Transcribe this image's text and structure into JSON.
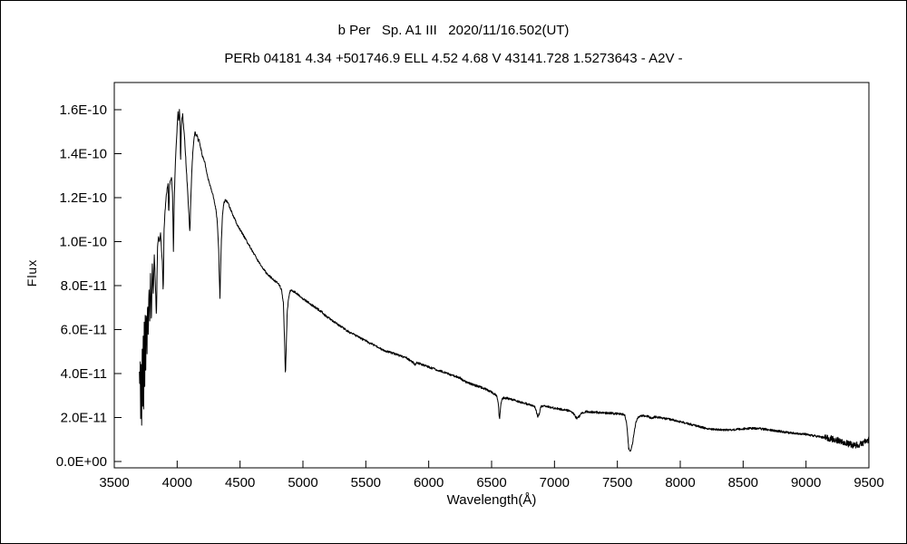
{
  "chart_data": {
    "type": "line",
    "title": "b Per   Sp. A1 III   2020/11/16.502(UT)",
    "subtitle": "PERb 04181 4.34 +501746.9 ELL 4.52 4.68 V 43141.728 1.5273643 - A2V -",
    "xlabel": "Wavelength(Å)",
    "ylabel": "Flux",
    "xlim": [
      3500,
      9500
    ],
    "ylim": [
      0,
      16
    ],
    "flux_scale": "1e-11",
    "grid": false,
    "legend": "none",
    "line_color": "#000000",
    "background_color": "#ffffff",
    "frame_color": "#000000",
    "x_ticks": {
      "values": [
        3500,
        4000,
        4500,
        5000,
        5500,
        6000,
        6500,
        7000,
        7500,
        8000,
        8500,
        9000,
        9500
      ],
      "labels": [
        "3500",
        "4000",
        "4500",
        "5000",
        "5500",
        "6000",
        "6500",
        "7000",
        "7500",
        "8000",
        "8500",
        "9000",
        "9500"
      ]
    },
    "y_ticks": {
      "values": [
        0,
        2,
        4,
        6,
        8,
        10,
        12,
        14,
        16
      ],
      "labels": [
        "0.0E+00",
        "2.0E-11",
        "4.0E-11",
        "6.0E-11",
        "8.0E-11",
        "1.0E-10",
        "1.2E-10",
        "1.4E-10",
        "1.6E-10"
      ]
    },
    "noise": {
      "seed": 123456789,
      "base": 0.05,
      "regions": [
        {
          "from": 3700,
          "to": 3780,
          "amp": 0.2
        },
        {
          "from": 9150,
          "to": 9500,
          "amp": 0.15
        }
      ]
    },
    "points": [
      [
        3700,
        4.2
      ],
      [
        3703,
        3.0
      ],
      [
        3706,
        4.6
      ],
      [
        3710,
        2.0
      ],
      [
        3714,
        4.4
      ],
      [
        3718,
        1.8
      ],
      [
        3722,
        5.2
      ],
      [
        3726,
        2.6
      ],
      [
        3730,
        5.8
      ],
      [
        3734,
        2.2
      ],
      [
        3738,
        6.2
      ],
      [
        3742,
        3.4
      ],
      [
        3746,
        6.6
      ],
      [
        3750,
        4.2
      ],
      [
        3755,
        7.0
      ],
      [
        3760,
        5.0
      ],
      [
        3765,
        7.4
      ],
      [
        3770,
        5.6
      ],
      [
        3776,
        8.0
      ],
      [
        3782,
        6.4
      ],
      [
        3788,
        8.6
      ],
      [
        3795,
        6.2
      ],
      [
        3802,
        9.0
      ],
      [
        3810,
        7.6
      ],
      [
        3818,
        9.4
      ],
      [
        3826,
        8.2
      ],
      [
        3835,
        6.6
      ],
      [
        3844,
        9.8
      ],
      [
        3852,
        10.2
      ],
      [
        3860,
        10.0
      ],
      [
        3868,
        10.4
      ],
      [
        3876,
        9.6
      ],
      [
        3883,
        9.0
      ],
      [
        3889,
        7.6
      ],
      [
        3896,
        10.6
      ],
      [
        3904,
        11.4
      ],
      [
        3912,
        12.0
      ],
      [
        3920,
        12.4
      ],
      [
        3928,
        12.6
      ],
      [
        3933,
        11.2
      ],
      [
        3940,
        12.6
      ],
      [
        3948,
        12.8
      ],
      [
        3956,
        12.9
      ],
      [
        3964,
        12.0
      ],
      [
        3970,
        9.6
      ],
      [
        3978,
        12.2
      ],
      [
        3986,
        13.6
      ],
      [
        3994,
        14.6
      ],
      [
        4000,
        15.2
      ],
      [
        4006,
        15.9
      ],
      [
        4012,
        15.5
      ],
      [
        4018,
        16.0
      ],
      [
        4024,
        15.2
      ],
      [
        4027,
        13.4
      ],
      [
        4032,
        15.0
      ],
      [
        4038,
        15.6
      ],
      [
        4044,
        15.8
      ],
      [
        4050,
        15.3
      ],
      [
        4056,
        14.9
      ],
      [
        4062,
        14.4
      ],
      [
        4070,
        13.6
      ],
      [
        4078,
        12.8
      ],
      [
        4086,
        12.0
      ],
      [
        4094,
        11.2
      ],
      [
        4101,
        10.4
      ],
      [
        4110,
        12.2
      ],
      [
        4118,
        13.4
      ],
      [
        4126,
        14.2
      ],
      [
        4134,
        14.7
      ],
      [
        4142,
        15.0
      ],
      [
        4150,
        14.8
      ],
      [
        4158,
        14.9
      ],
      [
        4166,
        14.6
      ],
      [
        4174,
        14.7
      ],
      [
        4182,
        14.4
      ],
      [
        4190,
        14.2
      ],
      [
        4200,
        13.9
      ],
      [
        4210,
        13.8
      ],
      [
        4220,
        13.6
      ],
      [
        4230,
        13.3
      ],
      [
        4240,
        13.0
      ],
      [
        4250,
        12.8
      ],
      [
        4260,
        12.6
      ],
      [
        4270,
        12.4
      ],
      [
        4280,
        12.2
      ],
      [
        4290,
        12.0
      ],
      [
        4300,
        11.7
      ],
      [
        4310,
        11.4
      ],
      [
        4320,
        10.8
      ],
      [
        4330,
        9.6
      ],
      [
        4340,
        7.4
      ],
      [
        4350,
        9.8
      ],
      [
        4360,
        11.2
      ],
      [
        4370,
        11.7
      ],
      [
        4380,
        11.9
      ],
      [
        4400,
        11.8
      ],
      [
        4415,
        11.6
      ],
      [
        4430,
        11.4
      ],
      [
        4445,
        11.2
      ],
      [
        4460,
        11.0
      ],
      [
        4475,
        10.8
      ],
      [
        4490,
        10.65
      ],
      [
        4505,
        10.5
      ],
      [
        4520,
        10.35
      ],
      [
        4535,
        10.2
      ],
      [
        4550,
        10.05
      ],
      [
        4565,
        9.9
      ],
      [
        4580,
        9.75
      ],
      [
        4600,
        9.55
      ],
      [
        4620,
        9.35
      ],
      [
        4640,
        9.15
      ],
      [
        4660,
        8.95
      ],
      [
        4680,
        8.8
      ],
      [
        4700,
        8.65
      ],
      [
        4720,
        8.5
      ],
      [
        4740,
        8.4
      ],
      [
        4760,
        8.3
      ],
      [
        4780,
        8.2
      ],
      [
        4800,
        8.1
      ],
      [
        4815,
        8.0
      ],
      [
        4830,
        7.8
      ],
      [
        4845,
        7.2
      ],
      [
        4855,
        5.2
      ],
      [
        4861,
        3.9
      ],
      [
        4868,
        5.4
      ],
      [
        4875,
        6.8
      ],
      [
        4885,
        7.4
      ],
      [
        4895,
        7.7
      ],
      [
        4905,
        7.8
      ],
      [
        4920,
        7.75
      ],
      [
        4940,
        7.7
      ],
      [
        4960,
        7.6
      ],
      [
        4980,
        7.5
      ],
      [
        5000,
        7.4
      ],
      [
        5025,
        7.3
      ],
      [
        5050,
        7.2
      ],
      [
        5075,
        7.1
      ],
      [
        5100,
        7.0
      ],
      [
        5125,
        6.9
      ],
      [
        5150,
        6.8
      ],
      [
        5175,
        6.65
      ],
      [
        5200,
        6.55
      ],
      [
        5225,
        6.45
      ],
      [
        5250,
        6.35
      ],
      [
        5275,
        6.25
      ],
      [
        5300,
        6.15
      ],
      [
        5325,
        6.05
      ],
      [
        5350,
        5.95
      ],
      [
        5375,
        5.85
      ],
      [
        5400,
        5.8
      ],
      [
        5425,
        5.7
      ],
      [
        5450,
        5.65
      ],
      [
        5475,
        5.55
      ],
      [
        5500,
        5.5
      ],
      [
        5525,
        5.4
      ],
      [
        5550,
        5.35
      ],
      [
        5575,
        5.25
      ],
      [
        5600,
        5.2
      ],
      [
        5625,
        5.1
      ],
      [
        5650,
        5.05
      ],
      [
        5675,
        5.0
      ],
      [
        5700,
        4.95
      ],
      [
        5725,
        4.9
      ],
      [
        5750,
        4.85
      ],
      [
        5775,
        4.8
      ],
      [
        5800,
        4.75
      ],
      [
        5825,
        4.7
      ],
      [
        5850,
        4.6
      ],
      [
        5875,
        4.5
      ],
      [
        5890,
        4.4
      ],
      [
        5905,
        4.5
      ],
      [
        5925,
        4.45
      ],
      [
        5950,
        4.4
      ],
      [
        5975,
        4.35
      ],
      [
        6000,
        4.3
      ],
      [
        6025,
        4.25
      ],
      [
        6050,
        4.2
      ],
      [
        6075,
        4.15
      ],
      [
        6100,
        4.1
      ],
      [
        6125,
        4.05
      ],
      [
        6150,
        4.0
      ],
      [
        6175,
        3.95
      ],
      [
        6200,
        3.9
      ],
      [
        6225,
        3.85
      ],
      [
        6250,
        3.8
      ],
      [
        6270,
        3.7
      ],
      [
        6285,
        3.65
      ],
      [
        6300,
        3.6
      ],
      [
        6325,
        3.55
      ],
      [
        6350,
        3.5
      ],
      [
        6375,
        3.45
      ],
      [
        6400,
        3.4
      ],
      [
        6425,
        3.35
      ],
      [
        6450,
        3.3
      ],
      [
        6475,
        3.22
      ],
      [
        6500,
        3.15
      ],
      [
        6520,
        3.08
      ],
      [
        6540,
        3.0
      ],
      [
        6552,
        2.7
      ],
      [
        6563,
        1.9
      ],
      [
        6574,
        2.6
      ],
      [
        6585,
        2.85
      ],
      [
        6600,
        2.9
      ],
      [
        6620,
        2.88
      ],
      [
        6640,
        2.85
      ],
      [
        6660,
        2.82
      ],
      [
        6680,
        2.8
      ],
      [
        6700,
        2.76
      ],
      [
        6720,
        2.72
      ],
      [
        6740,
        2.68
      ],
      [
        6760,
        2.65
      ],
      [
        6780,
        2.62
      ],
      [
        6800,
        2.6
      ],
      [
        6820,
        2.56
      ],
      [
        6840,
        2.52
      ],
      [
        6855,
        2.3
      ],
      [
        6868,
        2.0
      ],
      [
        6880,
        2.2
      ],
      [
        6892,
        2.5
      ],
      [
        6910,
        2.52
      ],
      [
        6930,
        2.5
      ],
      [
        6950,
        2.48
      ],
      [
        6970,
        2.46
      ],
      [
        6990,
        2.44
      ],
      [
        7010,
        2.42
      ],
      [
        7030,
        2.4
      ],
      [
        7050,
        2.38
      ],
      [
        7070,
        2.36
      ],
      [
        7090,
        2.34
      ],
      [
        7110,
        2.32
      ],
      [
        7130,
        2.28
      ],
      [
        7150,
        2.2
      ],
      [
        7165,
        2.05
      ],
      [
        7180,
        1.95
      ],
      [
        7195,
        2.05
      ],
      [
        7210,
        2.15
      ],
      [
        7225,
        2.22
      ],
      [
        7240,
        2.26
      ],
      [
        7260,
        2.27
      ],
      [
        7280,
        2.26
      ],
      [
        7300,
        2.25
      ],
      [
        7320,
        2.24
      ],
      [
        7340,
        2.23
      ],
      [
        7360,
        2.22
      ],
      [
        7380,
        2.22
      ],
      [
        7400,
        2.21
      ],
      [
        7420,
        2.2
      ],
      [
        7440,
        2.2
      ],
      [
        7460,
        2.19
      ],
      [
        7480,
        2.18
      ],
      [
        7500,
        2.17
      ],
      [
        7520,
        2.16
      ],
      [
        7540,
        2.15
      ],
      [
        7560,
        2.1
      ],
      [
        7575,
        1.7
      ],
      [
        7590,
        0.6
      ],
      [
        7605,
        0.45
      ],
      [
        7620,
        0.8
      ],
      [
        7635,
        1.4
      ],
      [
        7650,
        1.85
      ],
      [
        7665,
        2.0
      ],
      [
        7680,
        2.05
      ],
      [
        7700,
        2.08
      ],
      [
        7720,
        2.08
      ],
      [
        7740,
        2.06
      ],
      [
        7760,
        2.0
      ],
      [
        7774,
        1.95
      ],
      [
        7790,
        2.02
      ],
      [
        7810,
        2.02
      ],
      [
        7830,
        2.0
      ],
      [
        7850,
        1.98
      ],
      [
        7870,
        1.96
      ],
      [
        7890,
        1.94
      ],
      [
        7910,
        1.92
      ],
      [
        7930,
        1.9
      ],
      [
        7950,
        1.88
      ],
      [
        7970,
        1.85
      ],
      [
        7990,
        1.82
      ],
      [
        8010,
        1.8
      ],
      [
        8030,
        1.77
      ],
      [
        8050,
        1.74
      ],
      [
        8070,
        1.71
      ],
      [
        8090,
        1.68
      ],
      [
        8110,
        1.65
      ],
      [
        8130,
        1.62
      ],
      [
        8150,
        1.59
      ],
      [
        8170,
        1.56
      ],
      [
        8190,
        1.53
      ],
      [
        8210,
        1.5
      ],
      [
        8230,
        1.48
      ],
      [
        8250,
        1.47
      ],
      [
        8270,
        1.46
      ],
      [
        8290,
        1.45
      ],
      [
        8310,
        1.45
      ],
      [
        8330,
        1.44
      ],
      [
        8350,
        1.44
      ],
      [
        8370,
        1.44
      ],
      [
        8390,
        1.44
      ],
      [
        8410,
        1.44
      ],
      [
        8430,
        1.45
      ],
      [
        8450,
        1.46
      ],
      [
        8470,
        1.47
      ],
      [
        8490,
        1.48
      ],
      [
        8510,
        1.49
      ],
      [
        8530,
        1.5
      ],
      [
        8550,
        1.5
      ],
      [
        8570,
        1.5
      ],
      [
        8590,
        1.5
      ],
      [
        8610,
        1.5
      ],
      [
        8630,
        1.49
      ],
      [
        8650,
        1.48
      ],
      [
        8670,
        1.47
      ],
      [
        8690,
        1.46
      ],
      [
        8710,
        1.44
      ],
      [
        8730,
        1.42
      ],
      [
        8750,
        1.4
      ],
      [
        8770,
        1.39
      ],
      [
        8790,
        1.38
      ],
      [
        8810,
        1.36
      ],
      [
        8830,
        1.34
      ],
      [
        8850,
        1.32
      ],
      [
        8870,
        1.3
      ],
      [
        8890,
        1.29
      ],
      [
        8910,
        1.28
      ],
      [
        8930,
        1.27
      ],
      [
        8950,
        1.26
      ],
      [
        8970,
        1.25
      ],
      [
        8990,
        1.24
      ],
      [
        9010,
        1.22
      ],
      [
        9030,
        1.2
      ],
      [
        9050,
        1.18
      ],
      [
        9070,
        1.16
      ],
      [
        9090,
        1.14
      ],
      [
        9110,
        1.12
      ],
      [
        9130,
        1.1
      ],
      [
        9150,
        1.08
      ],
      [
        9170,
        1.06
      ],
      [
        9190,
        1.04
      ],
      [
        9210,
        1.02
      ],
      [
        9230,
        1.0
      ],
      [
        9250,
        0.97
      ],
      [
        9270,
        0.94
      ],
      [
        9290,
        0.9
      ],
      [
        9310,
        0.86
      ],
      [
        9330,
        0.82
      ],
      [
        9350,
        0.78
      ],
      [
        9370,
        0.75
      ],
      [
        9390,
        0.73
      ],
      [
        9410,
        0.75
      ],
      [
        9430,
        0.8
      ],
      [
        9450,
        0.85
      ],
      [
        9470,
        0.9
      ],
      [
        9490,
        0.95
      ],
      [
        9500,
        1.0
      ]
    ]
  }
}
